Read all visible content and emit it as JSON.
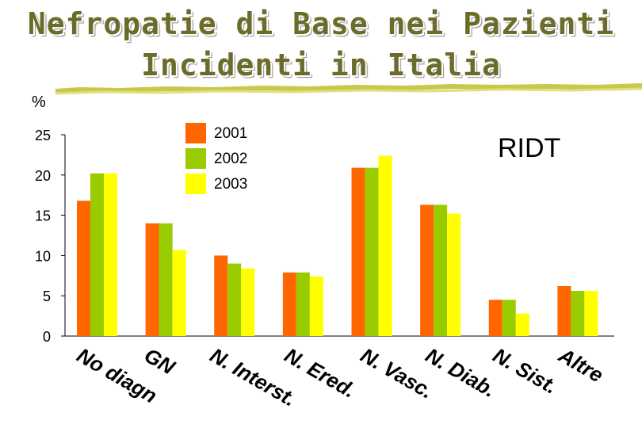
{
  "slide": {
    "title_line1": "Nefropatie di Base nei Pazienti",
    "title_line2": "Incidenti in Italia",
    "badge": "RIDT"
  },
  "chart_data": {
    "type": "bar",
    "ylabel": "%",
    "ylim": [
      0,
      25
    ],
    "yticks": [
      0,
      5,
      10,
      15,
      20,
      25
    ],
    "grid": false,
    "legend_position": "top-center",
    "categories": [
      "No diagn",
      "GN",
      "N. Interst.",
      "N. Ered.",
      "N. Vasc.",
      "N. Diab.",
      "N. Sist.",
      "Altre"
    ],
    "series": [
      {
        "name": "2001",
        "color": "#ff6600",
        "values": [
          16.8,
          14.0,
          10.0,
          7.9,
          20.9,
          16.3,
          4.5,
          6.2
        ]
      },
      {
        "name": "2002",
        "color": "#99cc00",
        "values": [
          20.2,
          14.0,
          9.0,
          7.9,
          20.9,
          16.3,
          4.5,
          5.6
        ]
      },
      {
        "name": "2003",
        "color": "#ffff00",
        "values": [
          20.2,
          10.7,
          8.4,
          7.4,
          22.4,
          15.2,
          2.8,
          5.6
        ]
      }
    ]
  }
}
